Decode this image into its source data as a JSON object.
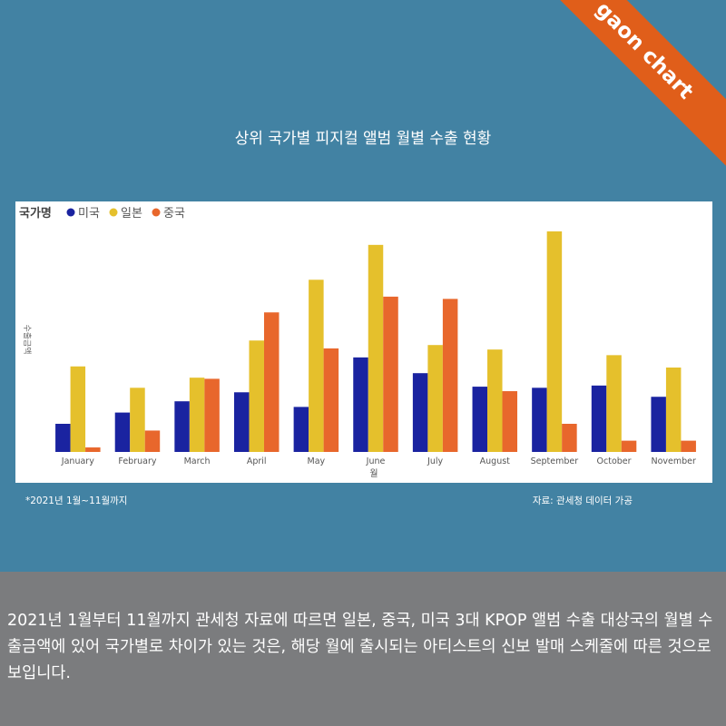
{
  "brand": {
    "label": "gaon chart",
    "color": "#e05e1a"
  },
  "title": "상위 국가별 피지컬 앨범 월별 수출 현황",
  "footnote_left": "*2021년 1월~11월까지",
  "footnote_right": "자료: 관세청 데이터 가공",
  "description": "2021년 1월부터 11월까지 관세청 자료에 따르면 일본, 중국, 미국 3대 KPOP 앨범 수출 대상국의 월별 수출금액에 있어 국가별로 차이가 있는 것은, 해당 월에 출시되는 아티스트의 신보 발매 스케줄에 따른 것으로 보입니다.",
  "colors": {
    "background_top": "#4282a3",
    "background_bottom": "#7b7c7e"
  },
  "chart_data": {
    "type": "bar",
    "legend_title": "국가명",
    "legend_position": "top-left",
    "xlabel": "월",
    "ylabel": "수출금액",
    "grid": false,
    "ylim": [
      0,
      100
    ],
    "categories": [
      "January",
      "February",
      "March",
      "April",
      "May",
      "June",
      "July",
      "August",
      "September",
      "October",
      "November"
    ],
    "series": [
      {
        "name": "미국",
        "color": "#1a23a0",
        "values": [
          12.5,
          17.5,
          22.5,
          26.5,
          20.0,
          42.0,
          35.0,
          29.0,
          28.5,
          29.5,
          24.5
        ]
      },
      {
        "name": "일본",
        "color": "#e5c02c",
        "values": [
          38.0,
          28.5,
          33.0,
          49.5,
          76.5,
          92.0,
          47.5,
          45.5,
          98.0,
          43.0,
          37.5
        ]
      },
      {
        "name": "중국",
        "color": "#e8672c",
        "values": [
          2.0,
          9.5,
          32.5,
          62.0,
          46.0,
          69.0,
          68.0,
          27.0,
          12.5,
          5.0,
          5.0
        ]
      }
    ]
  }
}
